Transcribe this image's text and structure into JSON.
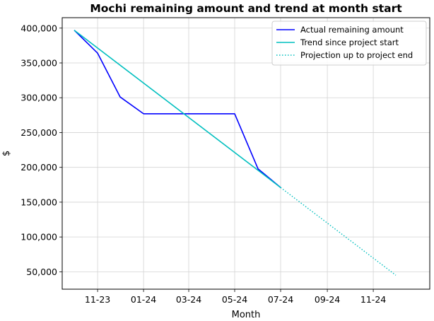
{
  "chart_data": {
    "type": "line",
    "title": "Mochi remaining amount and trend at month start",
    "xlabel": "Month",
    "ylabel": "$",
    "grid": true,
    "legend_position": "top-right",
    "x_range": [
      "2023-09-15",
      "2025-01-15"
    ],
    "ylim": [
      25000,
      415000
    ],
    "x_ticks": [
      {
        "date": "2023-11-01",
        "label": "11-23"
      },
      {
        "date": "2024-01-01",
        "label": "01-24"
      },
      {
        "date": "2024-03-01",
        "label": "03-24"
      },
      {
        "date": "2024-05-01",
        "label": "05-24"
      },
      {
        "date": "2024-07-01",
        "label": "07-24"
      },
      {
        "date": "2024-09-01",
        "label": "09-24"
      },
      {
        "date": "2024-11-01",
        "label": "11-24"
      }
    ],
    "y_ticks": [
      {
        "value": 50000,
        "label": "50,000"
      },
      {
        "value": 100000,
        "label": "100,000"
      },
      {
        "value": 150000,
        "label": "150,000"
      },
      {
        "value": 200000,
        "label": "200,000"
      },
      {
        "value": 250000,
        "label": "250,000"
      },
      {
        "value": 300000,
        "label": "300,000"
      },
      {
        "value": 350000,
        "label": "350,000"
      },
      {
        "value": 400000,
        "label": "400,000"
      }
    ],
    "series": [
      {
        "name": "Actual remaining amount",
        "color": "#0000ff",
        "style": "solid",
        "points": [
          {
            "x": "2023-10-01",
            "y": 397000
          },
          {
            "x": "2023-11-01",
            "y": 364000
          },
          {
            "x": "2023-12-01",
            "y": 301000
          },
          {
            "x": "2024-01-01",
            "y": 277000
          },
          {
            "x": "2024-02-01",
            "y": 277000
          },
          {
            "x": "2024-03-01",
            "y": 277000
          },
          {
            "x": "2024-04-01",
            "y": 277000
          },
          {
            "x": "2024-05-01",
            "y": 277000
          },
          {
            "x": "2024-06-01",
            "y": 198000
          },
          {
            "x": "2024-07-01",
            "y": 171000
          }
        ]
      },
      {
        "name": "Trend since project start",
        "color": "#00bfbf",
        "style": "solid",
        "points": [
          {
            "x": "2023-10-01",
            "y": 397000
          },
          {
            "x": "2024-07-01",
            "y": 171000
          }
        ]
      },
      {
        "name": "Projection up to project end",
        "color": "#00bfbf",
        "style": "dotted",
        "points": [
          {
            "x": "2024-07-01",
            "y": 171000
          },
          {
            "x": "2024-12-01",
            "y": 45000
          }
        ]
      }
    ]
  }
}
